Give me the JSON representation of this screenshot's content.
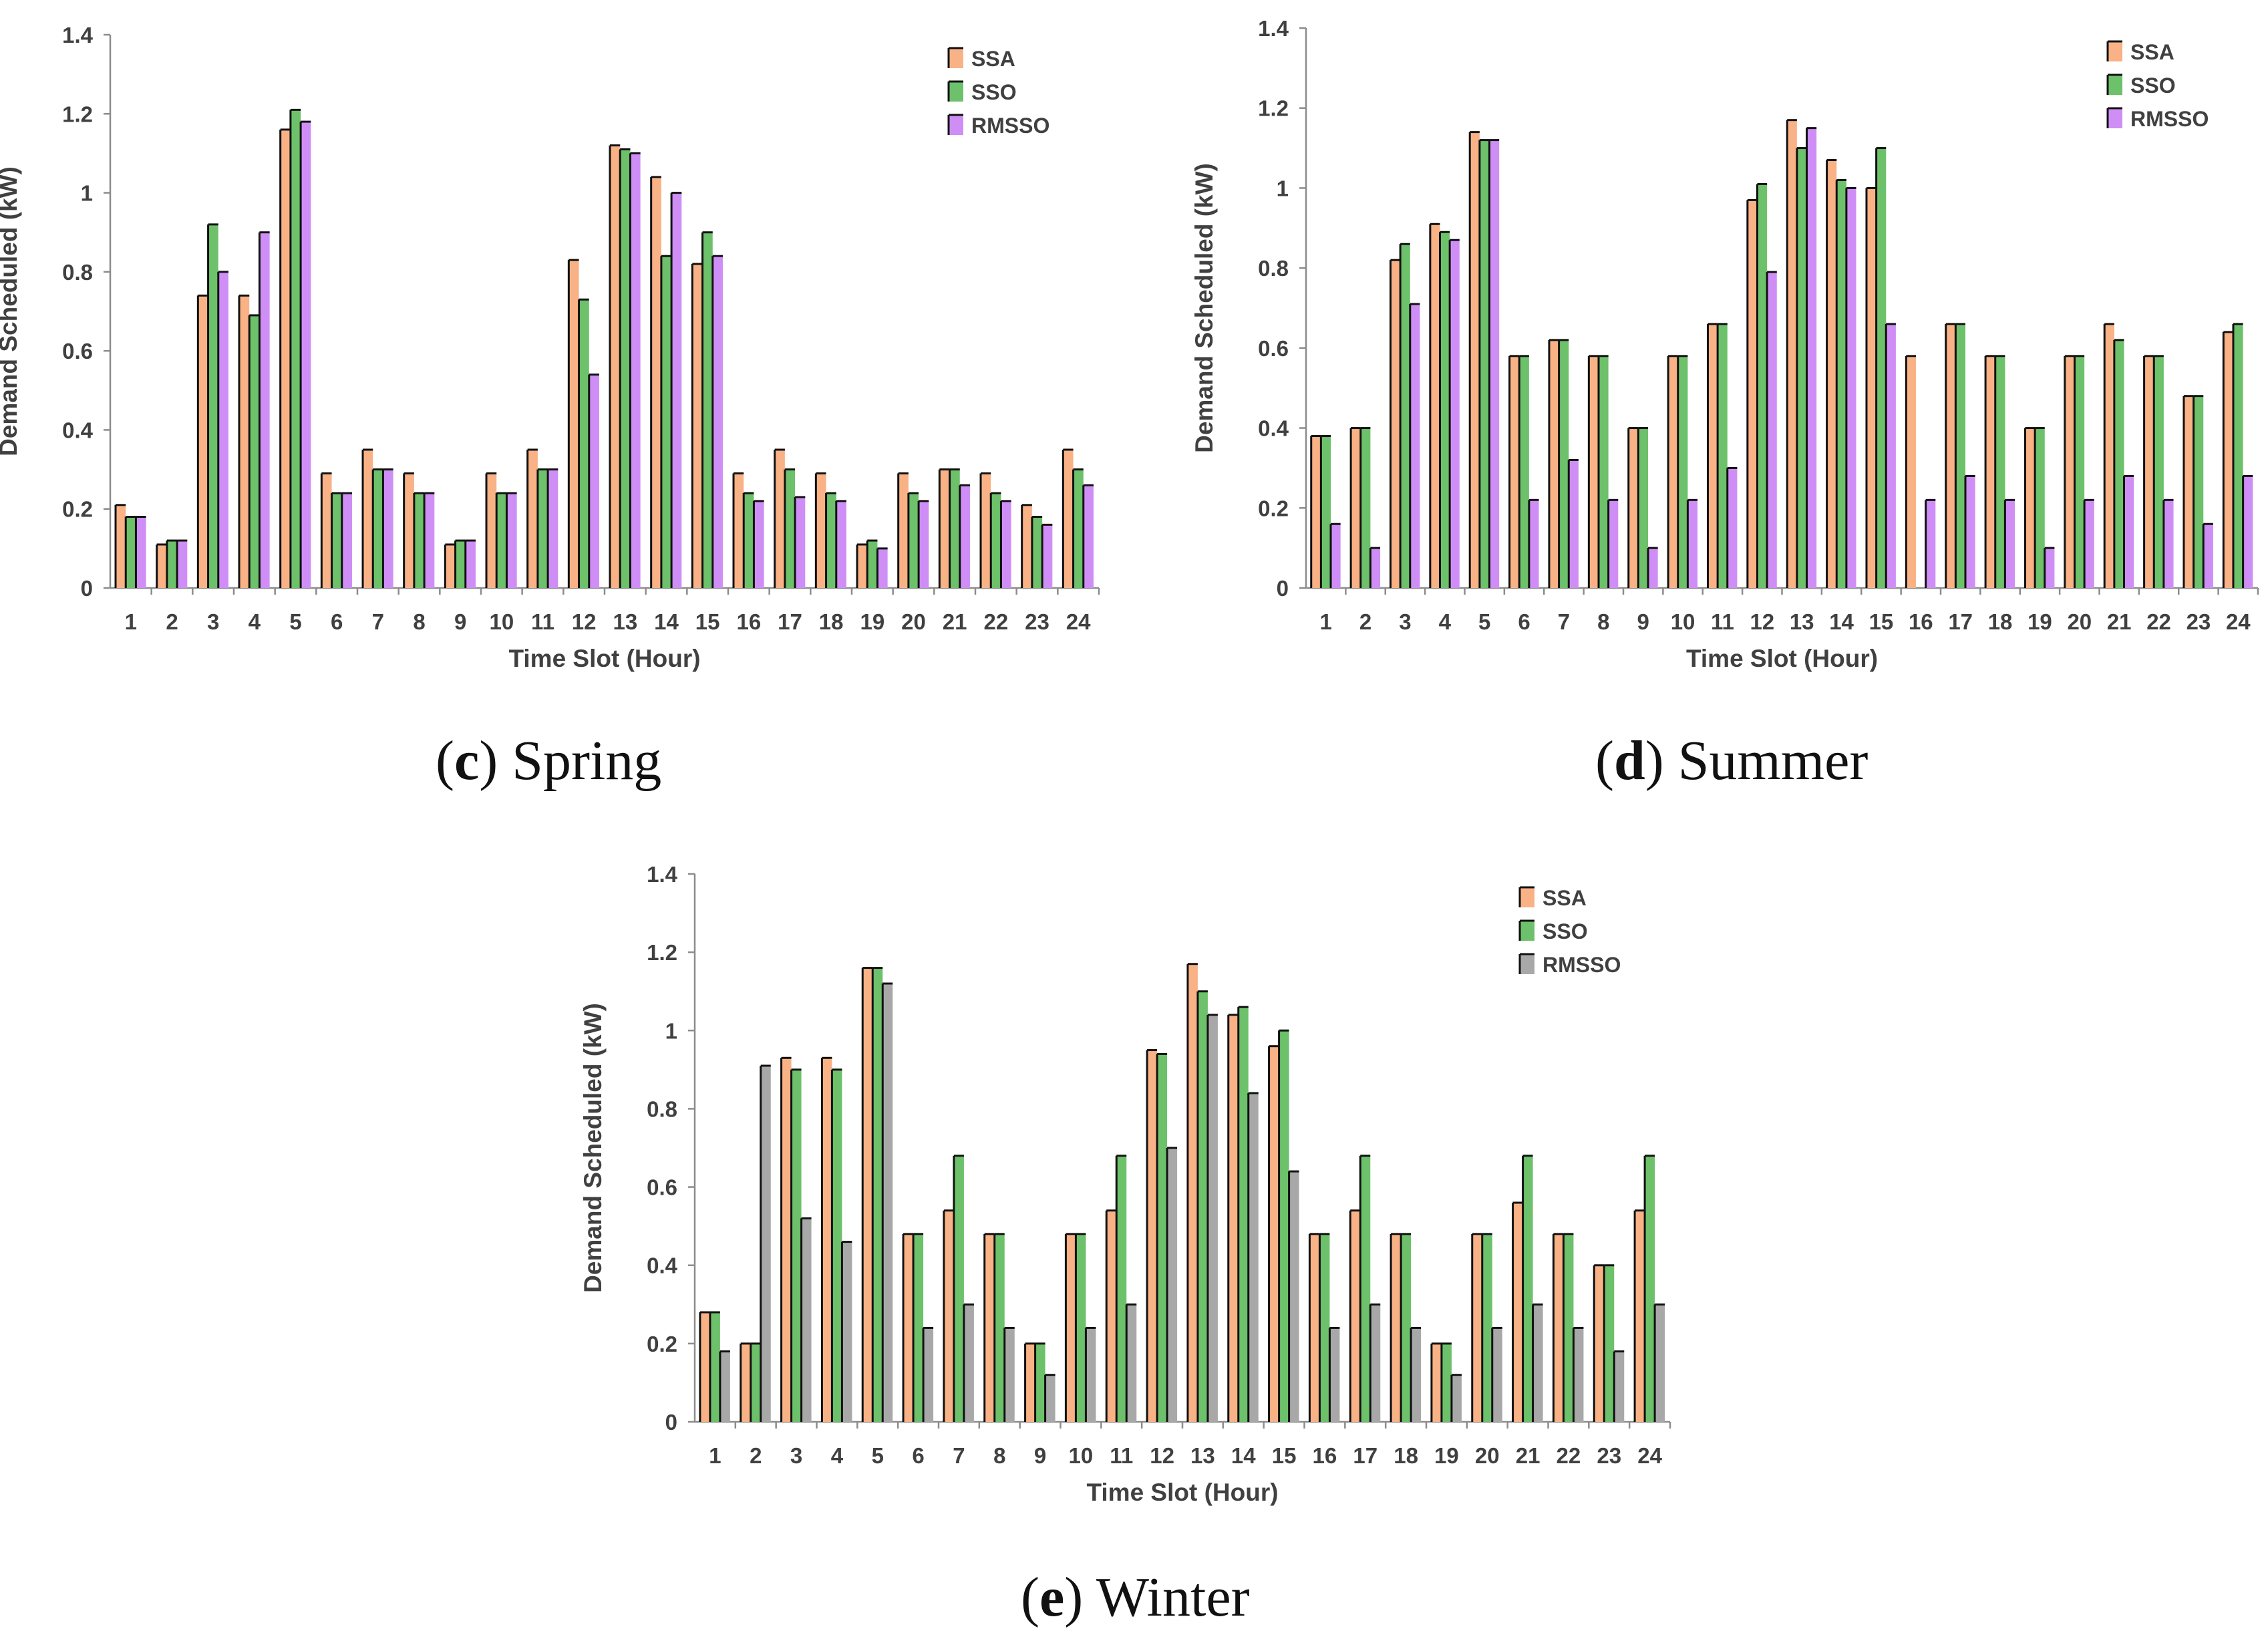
{
  "charts": [
    {
      "id": "spring",
      "caption": {
        "letter": "c",
        "text": "Spring"
      },
      "chart_data": {
        "type": "bar",
        "categories": [
          "1",
          "2",
          "3",
          "4",
          "5",
          "6",
          "7",
          "8",
          "9",
          "10",
          "11",
          "12",
          "13",
          "14",
          "15",
          "16",
          "17",
          "18",
          "19",
          "20",
          "21",
          "22",
          "23",
          "24"
        ],
        "xlabel": "Time Slot (Hour)",
        "ylabel": "Demand Scheduled (kW)",
        "ylim": [
          0,
          1.4
        ],
        "yticks": [
          "0",
          "0.2",
          "0.4",
          "0.6",
          "0.8",
          "1",
          "1.2",
          "1.4"
        ],
        "legend": "top-right",
        "series": [
          {
            "name": "SSA",
            "color": "#f9b285",
            "values": [
              0.21,
              0.11,
              0.74,
              0.74,
              1.16,
              0.29,
              0.35,
              0.29,
              0.11,
              0.29,
              0.35,
              0.83,
              1.12,
              1.04,
              0.82,
              0.29,
              0.35,
              0.29,
              0.11,
              0.29,
              0.3,
              0.29,
              0.21,
              0.35
            ]
          },
          {
            "name": "SSO",
            "color": "#6cc16a",
            "values": [
              0.18,
              0.12,
              0.92,
              0.69,
              1.21,
              0.24,
              0.3,
              0.24,
              0.12,
              0.24,
              0.3,
              0.73,
              1.11,
              0.84,
              0.9,
              0.24,
              0.3,
              0.24,
              0.12,
              0.24,
              0.3,
              0.24,
              0.18,
              0.3
            ]
          },
          {
            "name": "RMSSO",
            "color": "#cf8ef6",
            "values": [
              0.18,
              0.12,
              0.8,
              0.9,
              1.18,
              0.24,
              0.3,
              0.24,
              0.12,
              0.24,
              0.3,
              0.54,
              1.1,
              1.0,
              0.84,
              0.22,
              0.23,
              0.22,
              0.1,
              0.22,
              0.26,
              0.22,
              0.16,
              0.26
            ]
          }
        ]
      }
    },
    {
      "id": "summer",
      "caption": {
        "letter": "d",
        "text": "Summer"
      },
      "chart_data": {
        "type": "bar",
        "categories": [
          "1",
          "2",
          "3",
          "4",
          "5",
          "6",
          "7",
          "8",
          "9",
          "10",
          "11",
          "12",
          "13",
          "14",
          "15",
          "16",
          "17",
          "18",
          "19",
          "20",
          "21",
          "22",
          "23",
          "24"
        ],
        "xlabel": "Time Slot (Hour)",
        "ylabel": "Demand Scheduled (kW)",
        "ylim": [
          0,
          1.4
        ],
        "yticks": [
          "0",
          "0.2",
          "0.4",
          "0.6",
          "0.8",
          "1",
          "1.2",
          "1.4"
        ],
        "legend": "top-right",
        "series": [
          {
            "name": "SSA",
            "color": "#f9b285",
            "values": [
              0.38,
              0.4,
              0.82,
              0.91,
              1.14,
              0.58,
              0.62,
              0.58,
              0.4,
              0.58,
              0.66,
              0.97,
              1.17,
              1.07,
              1.0,
              0.58,
              0.66,
              0.58,
              0.4,
              0.58,
              0.66,
              0.58,
              0.48,
              0.64
            ]
          },
          {
            "name": "SSO",
            "color": "#6cc16a",
            "values": [
              0.38,
              0.4,
              0.86,
              0.89,
              1.12,
              0.58,
              0.62,
              0.58,
              0.4,
              0.58,
              0.66,
              1.01,
              1.1,
              1.02,
              1.1,
              0.0,
              0.66,
              0.58,
              0.4,
              0.58,
              0.62,
              0.58,
              0.48,
              0.66
            ]
          },
          {
            "name": "RMSSO",
            "color": "#cf8ef6",
            "values": [
              0.16,
              0.1,
              0.71,
              0.87,
              1.12,
              0.22,
              0.32,
              0.22,
              0.1,
              0.22,
              0.3,
              0.79,
              1.15,
              1.0,
              0.66,
              0.22,
              0.28,
              0.22,
              0.1,
              0.22,
              0.28,
              0.22,
              0.16,
              0.28
            ]
          }
        ]
      }
    },
    {
      "id": "winter",
      "caption": {
        "letter": "e",
        "text": "Winter"
      },
      "chart_data": {
        "type": "bar",
        "categories": [
          "1",
          "2",
          "3",
          "4",
          "5",
          "6",
          "7",
          "8",
          "9",
          "10",
          "11",
          "12",
          "13",
          "14",
          "15",
          "16",
          "17",
          "18",
          "19",
          "20",
          "21",
          "22",
          "23",
          "24"
        ],
        "xlabel": "Time Slot (Hour)",
        "ylabel": "Demand Scheduled (kW)",
        "ylim": [
          0,
          1.4
        ],
        "yticks": [
          "0",
          "0.2",
          "0.4",
          "0.6",
          "0.8",
          "1",
          "1.2",
          "1.4"
        ],
        "legend": "top-right",
        "series": [
          {
            "name": "SSA",
            "color": "#f9b285",
            "values": [
              0.28,
              0.2,
              0.93,
              0.93,
              1.16,
              0.48,
              0.54,
              0.48,
              0.2,
              0.48,
              0.54,
              0.95,
              1.17,
              1.04,
              0.96,
              0.48,
              0.54,
              0.48,
              0.2,
              0.48,
              0.56,
              0.48,
              0.4,
              0.54
            ]
          },
          {
            "name": "SSO",
            "color": "#6cc16a",
            "values": [
              0.28,
              0.2,
              0.9,
              0.9,
              1.16,
              0.48,
              0.68,
              0.48,
              0.2,
              0.48,
              0.68,
              0.94,
              1.1,
              1.06,
              1.0,
              0.48,
              0.68,
              0.48,
              0.2,
              0.48,
              0.68,
              0.48,
              0.4,
              0.68
            ]
          },
          {
            "name": "RMSSO",
            "color": "#a8a8a8",
            "values": [
              0.18,
              0.91,
              0.52,
              0.46,
              1.12,
              0.24,
              0.3,
              0.24,
              0.12,
              0.24,
              0.3,
              0.7,
              1.04,
              0.84,
              0.64,
              0.24,
              0.3,
              0.24,
              0.12,
              0.24,
              0.3,
              0.24,
              0.18,
              0.3
            ]
          }
        ]
      }
    }
  ]
}
